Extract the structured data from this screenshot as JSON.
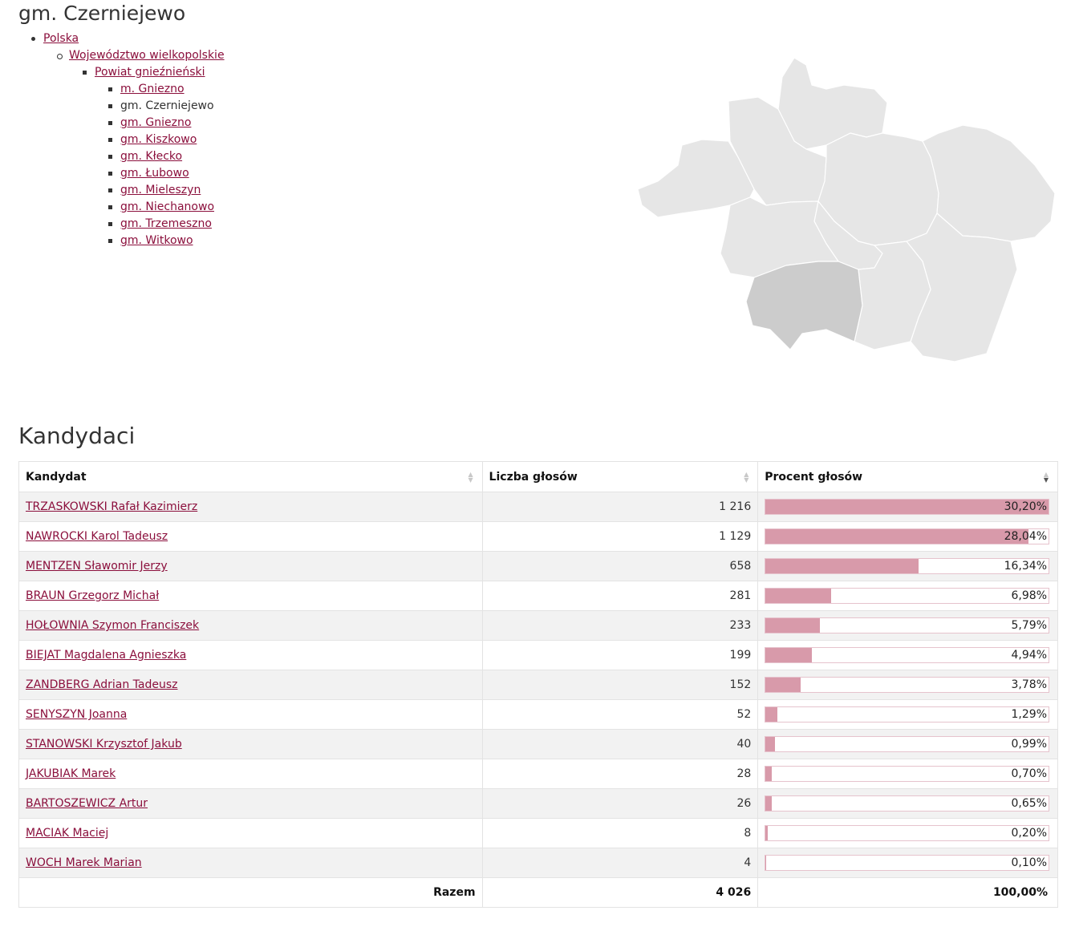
{
  "page": {
    "title": "gm. Czerniejewo"
  },
  "breadcrumb": {
    "level1": "Polska",
    "level2": "Województwo wielkopolskie",
    "level3": "Powiat gnieźnieński",
    "items": [
      {
        "label": "m. Gniezno",
        "current": false
      },
      {
        "label": "gm. Czerniejewo",
        "current": true
      },
      {
        "label": "gm. Gniezno",
        "current": false
      },
      {
        "label": "gm. Kiszkowo",
        "current": false
      },
      {
        "label": "gm. Kłecko",
        "current": false
      },
      {
        "label": "gm. Łubowo",
        "current": false
      },
      {
        "label": "gm. Mieleszyn",
        "current": false
      },
      {
        "label": "gm. Niechanowo",
        "current": false
      },
      {
        "label": "gm. Trzemeszno",
        "current": false
      },
      {
        "label": "gm. Witkowo",
        "current": false
      }
    ]
  },
  "map": {
    "fill": "#e6e6e6",
    "highlight": "#cccccc",
    "stroke": "#ffffff"
  },
  "candidates_section": {
    "title": "Kandydaci",
    "columns": {
      "candidate": "Kandydat",
      "votes": "Liczba głosów",
      "percent": "Procent głosów"
    },
    "rows": [
      {
        "name": "TRZASKOWSKI Rafał Kazimierz",
        "votes": "1 216",
        "pct_label": "30,20%",
        "pct": 30.2
      },
      {
        "name": "NAWROCKI Karol Tadeusz",
        "votes": "1 129",
        "pct_label": "28,04%",
        "pct": 28.04
      },
      {
        "name": "MENTZEN Sławomir Jerzy",
        "votes": "658",
        "pct_label": "16,34%",
        "pct": 16.34
      },
      {
        "name": "BRAUN Grzegorz Michał",
        "votes": "281",
        "pct_label": "6,98%",
        "pct": 6.98
      },
      {
        "name": "HOŁOWNIA Szymon Franciszek",
        "votes": "233",
        "pct_label": "5,79%",
        "pct": 5.79
      },
      {
        "name": "BIEJAT Magdalena Agnieszka",
        "votes": "199",
        "pct_label": "4,94%",
        "pct": 4.94
      },
      {
        "name": "ZANDBERG Adrian Tadeusz",
        "votes": "152",
        "pct_label": "3,78%",
        "pct": 3.78
      },
      {
        "name": "SENYSZYN Joanna",
        "votes": "52",
        "pct_label": "1,29%",
        "pct": 1.29
      },
      {
        "name": "STANOWSKI Krzysztof Jakub",
        "votes": "40",
        "pct_label": "0,99%",
        "pct": 0.99
      },
      {
        "name": "JAKUBIAK Marek",
        "votes": "28",
        "pct_label": "0,70%",
        "pct": 0.7
      },
      {
        "name": "BARTOSZEWICZ Artur",
        "votes": "26",
        "pct_label": "0,65%",
        "pct": 0.65
      },
      {
        "name": "MACIAK Maciej",
        "votes": "8",
        "pct_label": "0,20%",
        "pct": 0.2
      },
      {
        "name": "WOCH Marek Marian",
        "votes": "4",
        "pct_label": "0,10%",
        "pct": 0.1
      }
    ],
    "total": {
      "label": "Razem",
      "votes": "4 026",
      "pct_label": "100,00%"
    },
    "bar_scale_max": 30.2,
    "bar_color": "#d89aaa"
  }
}
